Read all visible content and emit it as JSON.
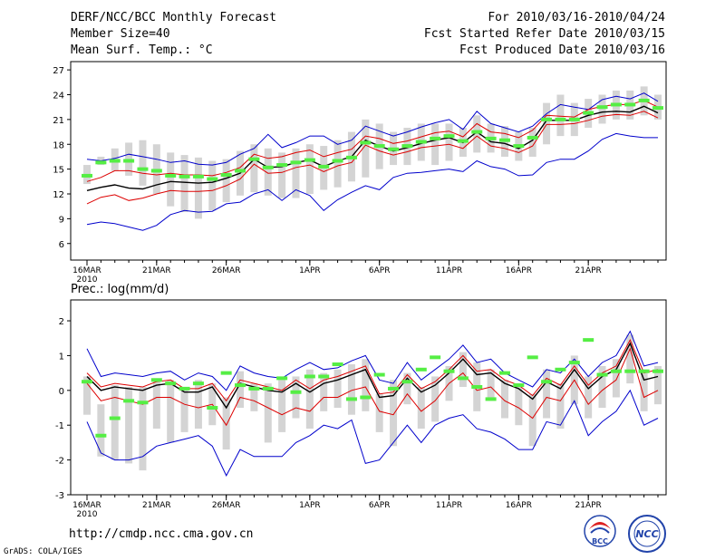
{
  "header": {
    "title": "DERF/NCC/BCC Monthly Forecast",
    "member_size": "Member Size=40",
    "variable": "Mean Surf. Temp.: °C",
    "period": "For 2010/03/16-2010/04/24",
    "start_date": "Fcst Started Refer Date 2010/03/15",
    "produced_date": "Fcst Produced Date 2010/03/16"
  },
  "footer": {
    "url": "http://cmdp.ncc.cma.gov.cn",
    "credit": "GrADS: COLA/IGES",
    "logo_bcc": "BCC",
    "logo_ncc": "NCC"
  },
  "colors": {
    "max_line": "#0000cc",
    "min_line": "#0000cc",
    "upper_line": "#dd0000",
    "lower_line": "#dd0000",
    "mean_line": "#000000",
    "marker": "#55ee44",
    "bar": "#d4d4d4"
  },
  "chart_data": [
    {
      "type": "line",
      "title": "Mean Surf. Temp.: °C",
      "ylim": [
        4,
        28
      ],
      "yticks": [
        6,
        9,
        12,
        15,
        18,
        21,
        24,
        27
      ],
      "x_days": 40,
      "xtick_labels": [
        {
          "day": 1,
          "label": "16MAR",
          "sub": "2010"
        },
        {
          "day": 6,
          "label": "21MAR"
        },
        {
          "day": 11,
          "label": "26MAR"
        },
        {
          "day": 17,
          "label": "1APR"
        },
        {
          "day": 22,
          "label": "6APR"
        },
        {
          "day": 27,
          "label": "11APR"
        },
        {
          "day": 32,
          "label": "16APR"
        },
        {
          "day": 37,
          "label": "21APR"
        }
      ],
      "series": [
        {
          "name": "max",
          "role": "max",
          "values": [
            16.2,
            16.0,
            16.3,
            16.8,
            16.5,
            16.2,
            15.8,
            16.0,
            15.6,
            15.5,
            15.8,
            16.8,
            17.5,
            19.2,
            17.6,
            18.2,
            19.0,
            19.0,
            18.0,
            18.5,
            20.2,
            19.6,
            19.0,
            19.5,
            20.1,
            20.6,
            21.0,
            19.8,
            22.0,
            20.5,
            20.0,
            19.5,
            20.2,
            21.7,
            22.8,
            22.5,
            22.2,
            23.4,
            23.8,
            23.5,
            24.2,
            23.2
          ]
        },
        {
          "name": "upper",
          "role": "upper",
          "values": [
            13.5,
            14.0,
            14.8,
            14.8,
            14.5,
            14.3,
            14.5,
            14.3,
            14.3,
            14.2,
            14.6,
            15.2,
            16.8,
            16.3,
            16.5,
            17.0,
            17.3,
            16.5,
            17.0,
            17.4,
            19.0,
            18.7,
            18.1,
            18.4,
            18.9,
            19.4,
            19.6,
            18.9,
            20.5,
            19.5,
            19.3,
            18.8,
            19.7,
            21.5,
            21.4,
            21.3,
            22.2,
            22.6,
            22.8,
            22.8,
            23.3,
            22.5
          ]
        },
        {
          "name": "mean",
          "role": "mean",
          "values": [
            12.4,
            12.8,
            13.1,
            12.7,
            12.6,
            13.1,
            13.5,
            13.4,
            13.3,
            13.4,
            13.9,
            14.5,
            16.2,
            15.2,
            15.3,
            15.8,
            16.1,
            15.3,
            16.0,
            16.5,
            18.5,
            17.8,
            17.2,
            17.6,
            18.1,
            18.5,
            18.8,
            18.2,
            19.5,
            18.3,
            18.1,
            17.5,
            18.5,
            20.9,
            20.9,
            20.9,
            21.5,
            21.9,
            22.0,
            21.9,
            22.6,
            21.8
          ]
        },
        {
          "name": "lower",
          "role": "lower",
          "values": [
            10.8,
            11.6,
            11.9,
            11.2,
            11.5,
            12.0,
            12.4,
            12.3,
            12.3,
            12.4,
            13.0,
            13.8,
            15.6,
            14.5,
            14.6,
            15.2,
            15.5,
            14.7,
            15.4,
            15.8,
            17.9,
            17.2,
            16.7,
            17.1,
            17.6,
            17.8,
            18.0,
            17.5,
            19.0,
            17.8,
            17.5,
            17.0,
            17.8,
            20.4,
            20.4,
            20.5,
            20.9,
            21.4,
            21.6,
            21.5,
            22.0,
            21.2
          ]
        },
        {
          "name": "min",
          "role": "min",
          "values": [
            8.3,
            8.6,
            8.4,
            8.0,
            7.6,
            8.2,
            9.5,
            10.0,
            9.8,
            9.9,
            10.8,
            11.0,
            12.0,
            12.5,
            11.2,
            12.5,
            11.8,
            10.0,
            11.3,
            12.2,
            13.0,
            12.5,
            14.0,
            14.5,
            14.6,
            14.8,
            15.0,
            14.7,
            16.0,
            15.3,
            15.0,
            14.2,
            14.3,
            15.8,
            16.2,
            16.2,
            17.2,
            18.6,
            19.3,
            19.0,
            18.8,
            18.8
          ]
        },
        {
          "name": "median_marker",
          "role": "marker",
          "values": [
            14.2,
            15.8,
            16.0,
            16.0,
            15.0,
            14.8,
            14.2,
            14.1,
            14.1,
            13.8,
            14.3,
            14.8,
            16.2,
            15.2,
            15.5,
            15.8,
            16.1,
            15.3,
            16.0,
            16.4,
            18.2,
            17.8,
            17.4,
            17.8,
            18.3,
            18.7,
            19.0,
            18.4,
            19.5,
            18.7,
            18.5,
            17.8,
            18.8,
            21.0,
            21.0,
            21.0,
            21.8,
            22.5,
            22.8,
            22.8,
            23.3,
            22.4
          ]
        }
      ],
      "bars": [
        [
          13.2,
          15.5
        ],
        [
          15.5,
          16.5
        ],
        [
          14.8,
          17.5
        ],
        [
          14.2,
          18.2
        ],
        [
          13.0,
          18.5
        ],
        [
          12.0,
          18.0
        ],
        [
          10.5,
          17.0
        ],
        [
          9.8,
          16.7
        ],
        [
          9.0,
          16.4
        ],
        [
          10.0,
          16.0
        ],
        [
          11.0,
          16.2
        ],
        [
          11.8,
          17.2
        ],
        [
          12.2,
          18.0
        ],
        [
          11.8,
          17.5
        ],
        [
          11.5,
          17.0
        ],
        [
          11.5,
          17.5
        ],
        [
          12.0,
          18.0
        ],
        [
          12.5,
          17.8
        ],
        [
          12.8,
          18.5
        ],
        [
          13.5,
          19.5
        ],
        [
          14.0,
          21.0
        ],
        [
          15.0,
          20.5
        ],
        [
          15.5,
          19.5
        ],
        [
          15.5,
          20.0
        ],
        [
          16.0,
          20.5
        ],
        [
          15.5,
          20.5
        ],
        [
          16.0,
          20.5
        ],
        [
          16.5,
          20.0
        ],
        [
          17.0,
          21.5
        ],
        [
          17.0,
          20.5
        ],
        [
          16.5,
          20.2
        ],
        [
          16.0,
          19.5
        ],
        [
          16.5,
          20.0
        ],
        [
          18.0,
          23.0
        ],
        [
          19.0,
          24.0
        ],
        [
          19.0,
          23.0
        ],
        [
          20.0,
          23.5
        ],
        [
          20.5,
          24.0
        ],
        [
          21.0,
          24.5
        ],
        [
          21.0,
          24.5
        ],
        [
          21.5,
          25.0
        ],
        [
          21.0,
          24.0
        ]
      ]
    },
    {
      "type": "line",
      "title": "Prec.: log(mm/d)",
      "ylim": [
        -3,
        2.6
      ],
      "yticks": [
        -3,
        -2,
        -1,
        0,
        1,
        2
      ],
      "x_days": 40,
      "xtick_labels": [
        {
          "day": 1,
          "label": "16MAR",
          "sub": "2010"
        },
        {
          "day": 6,
          "label": "21MAR"
        },
        {
          "day": 11,
          "label": "26MAR"
        },
        {
          "day": 17,
          "label": "1APR"
        },
        {
          "day": 22,
          "label": "6APR"
        },
        {
          "day": 27,
          "label": "11APR"
        },
        {
          "day": 32,
          "label": "16APR"
        },
        {
          "day": 37,
          "label": "21APR"
        }
      ],
      "series": [
        {
          "name": "max",
          "role": "max",
          "values": [
            1.2,
            0.4,
            0.5,
            0.45,
            0.4,
            0.5,
            0.55,
            0.3,
            0.5,
            0.4,
            0.0,
            0.7,
            0.5,
            0.4,
            0.35,
            0.6,
            0.8,
            0.6,
            0.65,
            0.85,
            1.0,
            0.3,
            0.2,
            0.8,
            0.3,
            0.6,
            0.9,
            1.3,
            0.8,
            0.9,
            0.5,
            0.3,
            0.1,
            0.6,
            0.5,
            0.9,
            0.4,
            0.8,
            1.0,
            1.7,
            0.7,
            0.8
          ]
        },
        {
          "name": "upper",
          "role": "upper",
          "values": [
            0.5,
            0.1,
            0.2,
            0.15,
            0.1,
            0.25,
            0.3,
            0.05,
            0.05,
            0.2,
            -0.3,
            0.3,
            0.2,
            0.1,
            0.0,
            0.3,
            0.05,
            0.3,
            0.4,
            0.55,
            0.7,
            -0.1,
            -0.05,
            0.45,
            0.05,
            0.25,
            0.6,
            1.0,
            0.55,
            0.6,
            0.3,
            0.15,
            -0.15,
            0.35,
            0.15,
            0.7,
            0.15,
            0.5,
            0.7,
            1.45,
            0.5,
            0.6
          ]
        },
        {
          "name": "mean",
          "role": "mean",
          "values": [
            0.4,
            0.0,
            0.1,
            0.05,
            0.0,
            0.15,
            0.2,
            -0.05,
            -0.05,
            0.1,
            -0.5,
            0.2,
            0.1,
            0.0,
            -0.05,
            0.2,
            -0.05,
            0.2,
            0.3,
            0.45,
            0.6,
            -0.2,
            -0.15,
            0.35,
            -0.05,
            0.15,
            0.5,
            0.9,
            0.45,
            0.5,
            0.2,
            0.05,
            -0.25,
            0.25,
            0.05,
            0.6,
            0.05,
            0.4,
            0.6,
            1.35,
            0.3,
            0.4
          ]
        },
        {
          "name": "lower",
          "role": "lower",
          "values": [
            0.2,
            -0.3,
            -0.2,
            -0.3,
            -0.4,
            -0.2,
            -0.2,
            -0.4,
            -0.5,
            -0.4,
            -1.0,
            -0.2,
            -0.3,
            -0.5,
            -0.7,
            -0.5,
            -0.6,
            -0.2,
            -0.2,
            0.0,
            0.1,
            -0.6,
            -0.7,
            -0.1,
            -0.6,
            -0.3,
            0.2,
            0.5,
            0.0,
            0.1,
            -0.3,
            -0.5,
            -0.8,
            -0.2,
            -0.3,
            0.3,
            -0.4,
            0.0,
            0.3,
            1.2,
            -0.2,
            0.0
          ]
        },
        {
          "name": "min",
          "role": "min",
          "values": [
            -0.9,
            -1.8,
            -2.0,
            -2.0,
            -1.9,
            -1.6,
            -1.5,
            -1.4,
            -1.3,
            -1.6,
            -2.45,
            -1.7,
            -1.9,
            -1.9,
            -1.9,
            -1.5,
            -1.3,
            -1.0,
            -1.1,
            -0.85,
            -2.1,
            -2.0,
            -1.5,
            -1.0,
            -1.5,
            -1.0,
            -0.8,
            -0.7,
            -1.1,
            -1.2,
            -1.4,
            -1.7,
            -1.7,
            -0.9,
            -1.0,
            -0.3,
            -1.3,
            -0.9,
            -0.6,
            0.0,
            -1.0,
            -0.8
          ]
        },
        {
          "name": "median_marker",
          "role": "marker",
          "values": [
            0.25,
            -1.3,
            -0.8,
            -0.3,
            -0.35,
            0.3,
            0.2,
            0.05,
            0.2,
            -0.5,
            0.5,
            0.15,
            0.05,
            0.05,
            0.35,
            -0.05,
            0.4,
            0.4,
            0.75,
            -0.25,
            -0.2,
            0.45,
            0.05,
            0.25,
            0.6,
            0.95,
            0.55,
            0.35,
            0.1,
            -0.25,
            0.5,
            0.15,
            0.95,
            0.25,
            0.6,
            0.8,
            1.45,
            0.45,
            0.55,
            0.55,
            0.55,
            0.55
          ]
        },
        {
          "name": "marker_x",
          "role": "marker_x",
          "values": [
            1,
            2,
            3,
            4,
            5,
            6,
            7,
            8,
            9,
            10,
            11,
            12,
            13,
            14,
            15,
            16,
            17,
            18,
            19,
            20,
            21,
            22,
            23,
            24,
            25,
            26,
            27,
            28,
            29,
            30,
            31,
            32,
            33,
            34,
            35,
            36,
            37,
            38,
            39,
            40,
            41,
            41
          ]
        }
      ],
      "bars": [
        [
          -0.7,
          0.4
        ],
        [
          -1.9,
          -0.4
        ],
        [
          -2.0,
          0.15
        ],
        [
          -2.1,
          0.1
        ],
        [
          -2.3,
          0.1
        ],
        [
          -1.1,
          0.35
        ],
        [
          -1.5,
          0.3
        ],
        [
          -1.2,
          0.1
        ],
        [
          -1.1,
          0.3
        ],
        [
          -1.0,
          0.2
        ],
        [
          -1.7,
          -0.2
        ],
        [
          -0.5,
          0.55
        ],
        [
          -0.6,
          0.2
        ],
        [
          -1.5,
          0.2
        ],
        [
          -1.2,
          0.3
        ],
        [
          -0.8,
          0.4
        ],
        [
          -1.1,
          0.6
        ],
        [
          -0.6,
          0.5
        ],
        [
          -0.5,
          0.6
        ],
        [
          -0.7,
          0.75
        ],
        [
          -0.6,
          0.9
        ],
        [
          -1.2,
          -0.1
        ],
        [
          -1.6,
          0.3
        ],
        [
          -0.4,
          0.5
        ],
        [
          -1.1,
          0.1
        ],
        [
          -0.9,
          0.4
        ],
        [
          -0.3,
          0.7
        ],
        [
          0.1,
          1.1
        ],
        [
          -0.6,
          0.8
        ],
        [
          -0.3,
          0.6
        ],
        [
          -0.8,
          0.3
        ],
        [
          -1.0,
          0.2
        ],
        [
          -1.6,
          -0.1
        ],
        [
          -0.8,
          0.6
        ],
        [
          -1.1,
          0.2
        ],
        [
          -0.4,
          1.0
        ],
        [
          -0.8,
          0.4
        ],
        [
          -0.5,
          0.7
        ],
        [
          -0.2,
          0.9
        ],
        [
          0.2,
          1.6
        ],
        [
          -0.6,
          0.6
        ],
        [
          -0.4,
          0.7
        ]
      ]
    }
  ]
}
